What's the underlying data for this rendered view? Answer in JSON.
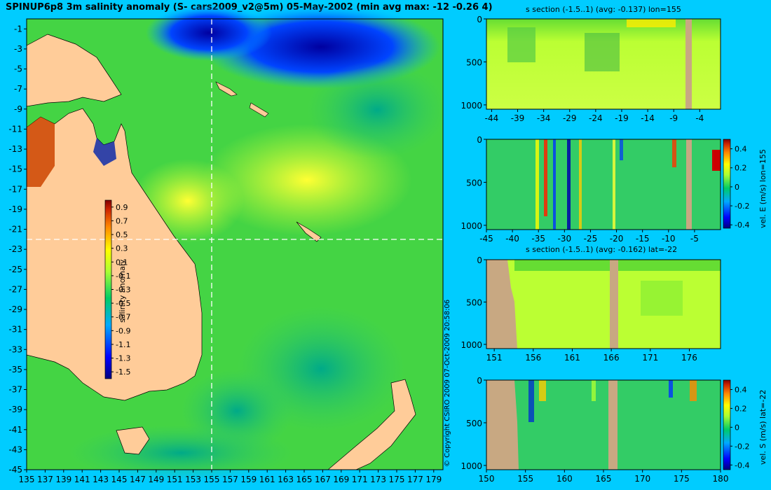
{
  "title": "SPINUP6p8 3m salinity anomaly (S- cars2009_v2@5m) 05-May-2002 (min avg max: -12 -0.26 4)",
  "copyright": "© Copyright CSIRO 2009   07-Oct-2009 20:58:06",
  "colors": {
    "background": "#00ccff",
    "land": "#ffcc99",
    "section_land": "#c8a882"
  },
  "chart_data": [
    {
      "type": "heatmap",
      "name": "map",
      "title": "SPINUP6p8 3m salinity anomaly (S- cars2009_v2@5m) 05-May-2002 (min avg max: -12 -0.26 4)",
      "x_ticks": [
        "135",
        "137",
        "139",
        "141",
        "143",
        "145",
        "147",
        "149",
        "151",
        "153",
        "155",
        "157",
        "159",
        "161",
        "163",
        "165",
        "167",
        "169",
        "171",
        "173",
        "175",
        "177",
        "179"
      ],
      "y_ticks": [
        "-1",
        "-3",
        "-5",
        "-7",
        "-9",
        "-11",
        "-13",
        "-15",
        "-17",
        "-19",
        "-21",
        "-23",
        "-25",
        "-27",
        "-29",
        "-31",
        "-33",
        "-35",
        "-37",
        "-39",
        "-41",
        "-43",
        "-45"
      ],
      "xlim": [
        135,
        180
      ],
      "ylim": [
        -45,
        0
      ],
      "section_lon": 155,
      "section_lat": -22,
      "colorbar": {
        "label": "salinity anomaly",
        "ticks": [
          "0.9",
          "0.7",
          "0.5",
          "0.3",
          "0.1",
          "-0.1",
          "-0.3",
          "-0.5",
          "-0.7",
          "-0.9",
          "-1.1",
          "-1.3",
          "-1.5"
        ],
        "range": [
          -1.6,
          1.0
        ]
      }
    },
    {
      "type": "heatmap",
      "name": "s-section-lon155",
      "title": "s section (-1.5..1) (avg: -0.137) lon=155",
      "x_ticks": [
        "-44",
        "-39",
        "-34",
        "-29",
        "-24",
        "-19",
        "-14",
        "-9",
        "-4"
      ],
      "y_ticks": [
        "0",
        "500",
        "1000"
      ],
      "xlim": [
        -45,
        0
      ],
      "ylim": [
        1050,
        0
      ]
    },
    {
      "type": "heatmap",
      "name": "velE-section-lon155",
      "title": "",
      "x_ticks": [
        "-45",
        "-40",
        "-35",
        "-30",
        "-25",
        "-20",
        "-15",
        "-10",
        "-5"
      ],
      "y_ticks": [
        "0",
        "500",
        "1000"
      ],
      "xlim": [
        -45,
        0
      ],
      "ylim": [
        1050,
        0
      ],
      "colorbar": {
        "label": "vel. E (m/s) lon=155",
        "ticks": [
          "0.4",
          "0.2",
          "0",
          "-0.2",
          "-0.4"
        ],
        "range": [
          -0.45,
          0.5
        ]
      }
    },
    {
      "type": "heatmap",
      "name": "s-section-lat-22",
      "title": "s section (-1.5..1) (avg: -0.162) lat=-22",
      "x_ticks": [
        "151",
        "156",
        "161",
        "166",
        "171",
        "176"
      ],
      "y_ticks": [
        "0",
        "500",
        "1000"
      ],
      "xlim": [
        150,
        180
      ],
      "ylim": [
        1050,
        0
      ]
    },
    {
      "type": "heatmap",
      "name": "velS-section-lat-22",
      "title": "",
      "x_ticks": [
        "150",
        "155",
        "160",
        "165",
        "170",
        "175",
        "180"
      ],
      "y_ticks": [
        "0",
        "500",
        "1000"
      ],
      "xlim": [
        150,
        180
      ],
      "ylim": [
        1050,
        0
      ],
      "colorbar": {
        "label": "vel. S (m/s) lat=-22",
        "ticks": [
          "0.4",
          "0.2",
          "0",
          "-0.2",
          "-0.4"
        ],
        "range": [
          -0.45,
          0.5
        ]
      }
    }
  ]
}
